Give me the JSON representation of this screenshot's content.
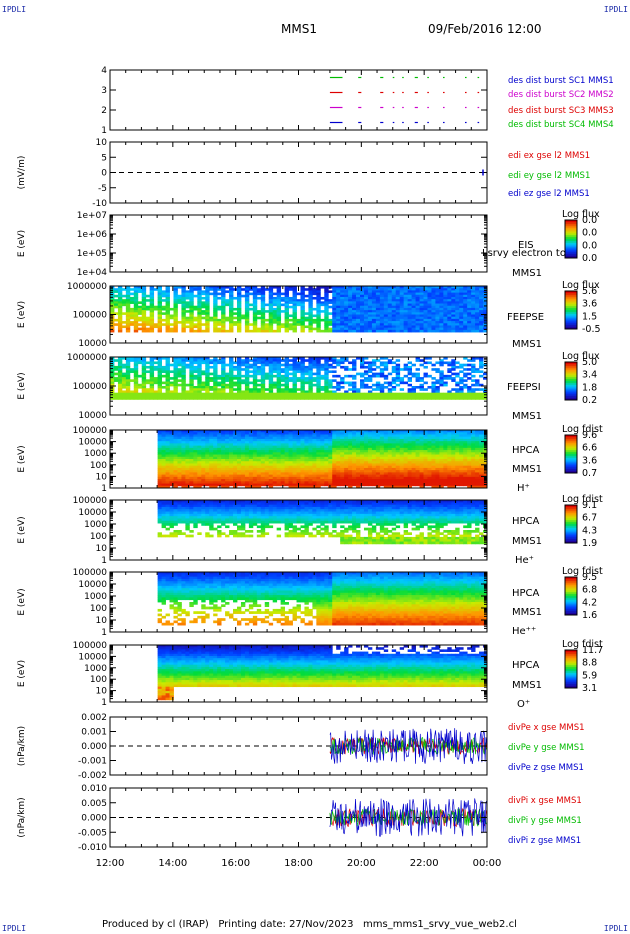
{
  "corner_label": "IPDLI",
  "header": {
    "spacecraft": "MMS1",
    "datetime": "09/Feb/2016 12:00"
  },
  "footer": {
    "text": "Produced by cl (IRAP)   Printing date: 27/Nov/2023   mms_mms1_srvy_vue_web2.cl"
  },
  "chart_data": [
    {
      "type": "line",
      "name": "burst intervals",
      "ylim": [
        0.5,
        4.5
      ],
      "yticks": [
        "4",
        "3",
        "2",
        "1"
      ],
      "series": [
        {
          "name": "des dist burst SC1 MMS1",
          "color": "#0000cc",
          "y": 1
        },
        {
          "name": "des dist burst SC2 MMS2",
          "color": "#cc00cc",
          "y": 2
        },
        {
          "name": "des dist burst SC3 MMS3",
          "color": "#dd0000",
          "y": 3
        },
        {
          "name": "des dist burst SC4 MMS4",
          "color": "#00bb00",
          "y": 4
        }
      ],
      "segments_hours": [
        [
          19.0,
          19.4
        ],
        [
          19.9,
          20.0
        ],
        [
          20.6,
          20.7
        ],
        [
          21.0,
          21.05
        ],
        [
          21.3,
          21.35
        ],
        [
          21.7,
          21.8
        ],
        [
          22.1,
          22.15
        ],
        [
          22.6,
          22.65
        ],
        [
          23.3,
          23.35
        ],
        [
          23.7,
          23.75
        ]
      ]
    },
    {
      "type": "line",
      "ylabel": "(mV/m)",
      "ylim": [
        -10,
        10
      ],
      "yticks": [
        "10",
        "5",
        "0",
        "-5",
        "-10"
      ],
      "series": [
        {
          "name": "edi ex gse l2 MMS1",
          "color": "#dd0000"
        },
        {
          "name": "edi ey gse l2 MMS1",
          "color": "#00bb00"
        },
        {
          "name": "edi ez gse l2 MMS1",
          "color": "#0000cc"
        }
      ]
    },
    {
      "type": "heatmap",
      "ylabel": "E (eV)",
      "yscale": "log",
      "yticks": [
        "1e+07",
        "1e+06",
        "1e+05",
        "1e+04"
      ],
      "labels": [
        "EIS",
        "MMS1"
      ],
      "overlay_text": "Lsrvy electron to",
      "colorbar": {
        "title": "Log flux",
        "ticks": [
          "0.0",
          "0.0",
          "0.0",
          "0.0"
        ]
      }
    },
    {
      "type": "heatmap",
      "ylabel": "E (eV)",
      "yscale": "log",
      "yticks": [
        "1000000",
        "100000",
        "10000"
      ],
      "labels": [
        "FEEPSE",
        "MMS1"
      ],
      "colorbar": {
        "title": "Log flux",
        "ticks": [
          "5.6",
          "3.6",
          "1.5",
          "-0.5"
        ]
      },
      "data_start_hour": 12.0
    },
    {
      "type": "heatmap",
      "ylabel": "E (eV)",
      "yscale": "log",
      "yticks": [
        "1000000",
        "100000",
        "10000"
      ],
      "labels": [
        "FEEPSI",
        "MMS1"
      ],
      "colorbar": {
        "title": "Log flux",
        "ticks": [
          "5.0",
          "3.4",
          "1.8",
          "0.2"
        ]
      },
      "data_start_hour": 12.0
    },
    {
      "type": "heatmap",
      "ylabel": "E (eV)",
      "yscale": "log",
      "yticks": [
        "100000",
        "10000",
        "1000",
        "100",
        "10",
        "1"
      ],
      "labels": [
        "HPCA",
        "MMS1",
        "H⁺"
      ],
      "colorbar": {
        "title": "Log fdist",
        "ticks": [
          "9.6",
          "6.6",
          "3.6",
          "0.7"
        ]
      },
      "data_start_hour": 13.4
    },
    {
      "type": "heatmap",
      "ylabel": "E (eV)",
      "yscale": "log",
      "yticks": [
        "100000",
        "10000",
        "1000",
        "100",
        "10",
        "1"
      ],
      "labels": [
        "HPCA",
        "MMS1",
        "He⁺"
      ],
      "colorbar": {
        "title": "Log fdist",
        "ticks": [
          "9.1",
          "6.7",
          "4.3",
          "1.9"
        ]
      },
      "data_start_hour": 13.4
    },
    {
      "type": "heatmap",
      "ylabel": "E (eV)",
      "yscale": "log",
      "yticks": [
        "100000",
        "10000",
        "1000",
        "100",
        "10",
        "1"
      ],
      "labels": [
        "HPCA",
        "MMS1",
        "He⁺⁺"
      ],
      "colorbar": {
        "title": "Log fdist",
        "ticks": [
          "9.5",
          "6.8",
          "4.2",
          "1.6"
        ]
      },
      "data_start_hour": 13.4
    },
    {
      "type": "heatmap",
      "ylabel": "E (eV)",
      "yscale": "log",
      "yticks": [
        "100000",
        "10000",
        "1000",
        "100",
        "10",
        "1"
      ],
      "labels": [
        "HPCA",
        "MMS1",
        "O⁺"
      ],
      "colorbar": {
        "title": "Log fdist",
        "ticks": [
          "11.7",
          "8.8",
          "5.9",
          "3.1"
        ]
      },
      "data_start_hour": 13.4
    },
    {
      "type": "line",
      "ylabel": "(nPa/km)",
      "ylim": [
        -0.0025,
        0.0025
      ],
      "yticks": [
        "0.002",
        "0.001",
        "0.000",
        "-0.001",
        "-0.002"
      ],
      "series": [
        {
          "name": "divPe x gse MMS1",
          "color": "#dd0000"
        },
        {
          "name": "divPe y gse MMS1",
          "color": "#00bb00"
        },
        {
          "name": "divPe z gse MMS1",
          "color": "#0000cc"
        }
      ],
      "data_start_hour": 19.0
    },
    {
      "type": "line",
      "ylabel": "(nPa/km)",
      "ylim": [
        -0.013,
        0.013
      ],
      "yticks": [
        "0.010",
        "0.005",
        "0.000",
        "-0.005",
        "-0.010"
      ],
      "series": [
        {
          "name": "divPi x gse MMS1",
          "color": "#dd0000"
        },
        {
          "name": "divPi y gse MMS1",
          "color": "#00bb00"
        },
        {
          "name": "divPi z gse MMS1",
          "color": "#0000cc"
        }
      ],
      "data_start_hour": 19.0
    }
  ],
  "x_axis": {
    "range_hours": [
      12,
      24
    ],
    "ticks": [
      "12:00",
      "14:00",
      "16:00",
      "18:00",
      "20:00",
      "22:00",
      "00:00"
    ]
  }
}
